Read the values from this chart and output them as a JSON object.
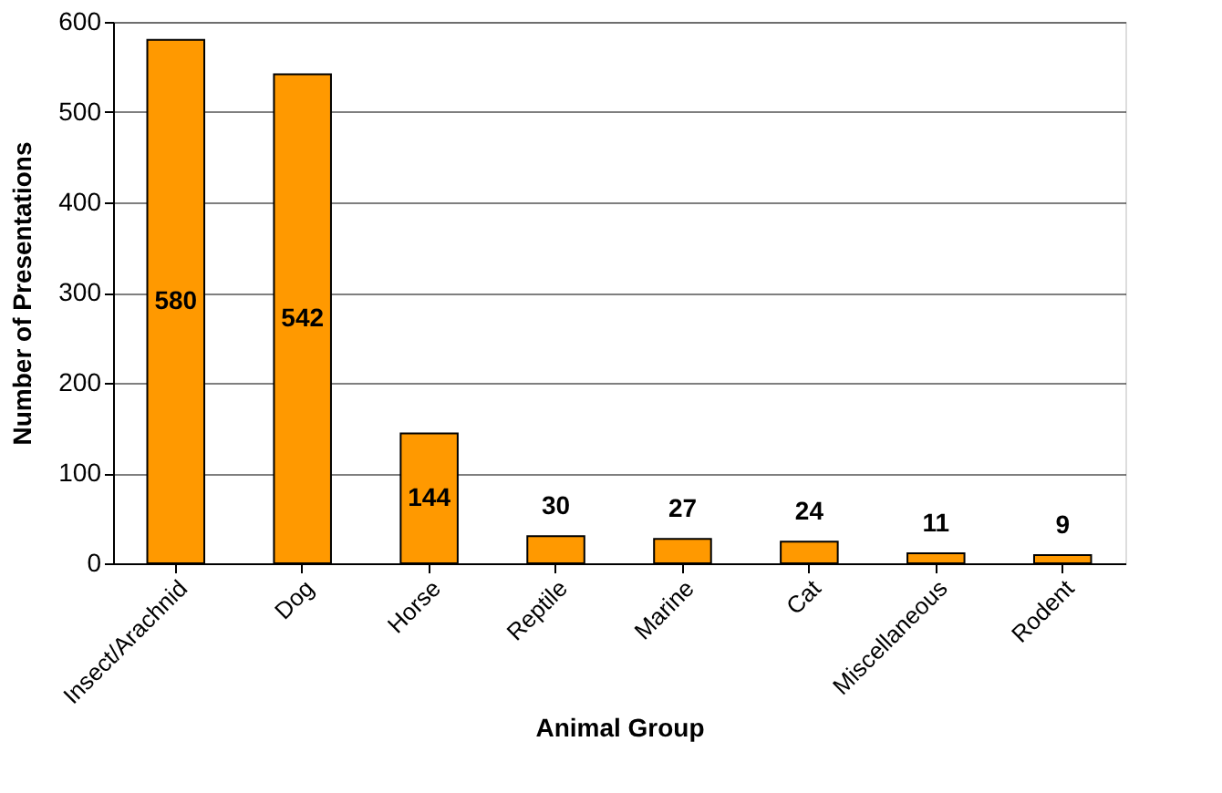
{
  "chart_data": {
    "type": "bar",
    "xlabel": "Animal Group",
    "ylabel": "Number of Presentations",
    "categories": [
      "Insect/Arachnid",
      "Dog",
      "Horse",
      "Reptile",
      "Marine",
      "Cat",
      "Miscellaneous",
      "Rodent"
    ],
    "values": [
      580,
      542,
      144,
      30,
      27,
      24,
      11,
      9
    ],
    "color": "#ff9900",
    "ylim": [
      0,
      600
    ],
    "yticks": [
      0,
      100,
      200,
      300,
      400,
      500,
      600
    ],
    "grid": "y",
    "data_labels": true
  }
}
